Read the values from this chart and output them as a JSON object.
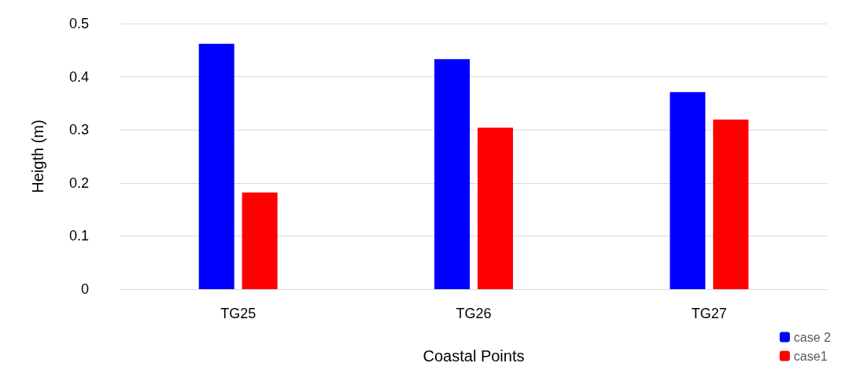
{
  "chart_data": {
    "type": "bar",
    "xlabel": "Coastal Points",
    "ylabel": "Heigth (m)",
    "categories": [
      "TG25",
      "TG26",
      "TG27"
    ],
    "series": [
      {
        "name": "case 2",
        "color": "#0000ff",
        "values": [
          0.462,
          0.433,
          0.371
        ]
      },
      {
        "name": "case1",
        "color": "#ff0000",
        "values": [
          0.182,
          0.304,
          0.319
        ]
      }
    ],
    "ylim": [
      0,
      0.5
    ],
    "yticks": [
      0,
      0.1,
      0.2,
      0.3,
      0.4,
      0.5
    ],
    "grid": "y",
    "legend": "bottom right"
  }
}
